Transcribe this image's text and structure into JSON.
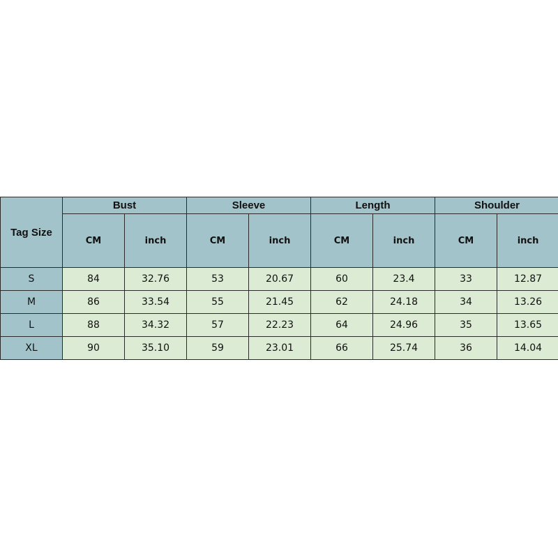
{
  "table": {
    "corner": "Tag Size",
    "groups": [
      "Bust",
      "Sleeve",
      "Length",
      "Shoulder"
    ],
    "units": [
      "CM",
      "inch"
    ],
    "rows": [
      {
        "size": "S",
        "values": [
          "84",
          "32.76",
          "53",
          "20.67",
          "60",
          "23.4",
          "33",
          "12.87"
        ]
      },
      {
        "size": "M",
        "values": [
          "86",
          "33.54",
          "55",
          "21.45",
          "62",
          "24.18",
          "34",
          "13.26"
        ]
      },
      {
        "size": "L",
        "values": [
          "88",
          "34.32",
          "57",
          "22.23",
          "64",
          "24.96",
          "35",
          "13.65"
        ]
      },
      {
        "size": "XL",
        "values": [
          "90",
          "35.10",
          "59",
          "23.01",
          "66",
          "25.74",
          "36",
          "14.04"
        ]
      }
    ]
  },
  "colors": {
    "header": "#a3c3ca",
    "cell": "#dcebd4"
  }
}
